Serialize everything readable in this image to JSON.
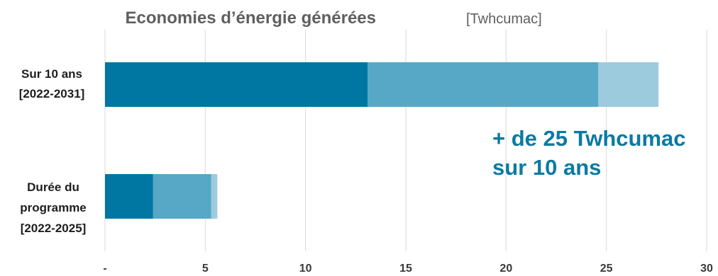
{
  "chart_data": {
    "type": "bar",
    "orientation": "horizontal",
    "stacked": true,
    "title": "Economies d’énergie générées",
    "title_unit": "[Twhcumac]",
    "categories": [
      [
        "Sur 10 ans",
        "[2022-2031]"
      ],
      [
        "Durée du",
        "programme",
        "[2022-2025]"
      ]
    ],
    "series": [
      {
        "values": [
          13.1,
          2.4
        ],
        "color": "#0076a3"
      },
      {
        "values": [
          11.5,
          2.9
        ],
        "color": "#56a8c6"
      },
      {
        "values": [
          3.0,
          0.3
        ],
        "color": "#9ccbdd"
      }
    ],
    "xlim": [
      0,
      30
    ],
    "xticks": [
      0,
      5,
      10,
      15,
      20,
      25,
      30
    ],
    "xtick_labels": [
      "-",
      "5",
      "10",
      "15",
      "20",
      "25",
      "30"
    ],
    "grid": "vertical",
    "legend": "none",
    "annotation": [
      "+ de 25 Twhcumac",
      "sur 10 ans"
    ],
    "annotation_color": "#0b7aa3"
  }
}
